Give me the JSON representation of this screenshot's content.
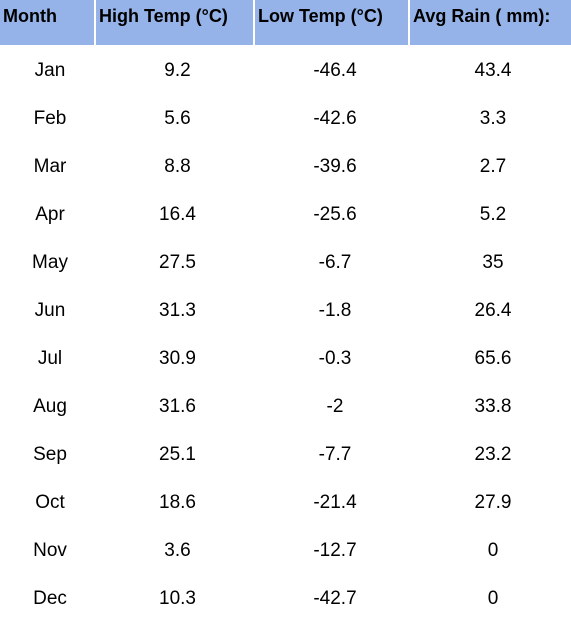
{
  "table": {
    "headers": [
      "Month",
      "High Temp (°C)",
      "Low Temp (°C)",
      "Avg Rain ( mm):"
    ],
    "rows": [
      [
        "Jan",
        "9.2",
        "-46.4",
        "43.4"
      ],
      [
        "Feb",
        "5.6",
        "-42.6",
        "3.3"
      ],
      [
        "Mar",
        "8.8",
        "-39.6",
        "2.7"
      ],
      [
        "Apr",
        "16.4",
        "-25.6",
        "5.2"
      ],
      [
        "May",
        "27.5",
        "-6.7",
        "35"
      ],
      [
        "Jun",
        "31.3",
        "-1.8",
        "26.4"
      ],
      [
        "Jul",
        "30.9",
        "-0.3",
        "65.6"
      ],
      [
        "Aug",
        "31.6",
        "-2",
        "33.8"
      ],
      [
        "Sep",
        "25.1",
        "-7.7",
        "23.2"
      ],
      [
        "Oct",
        "18.6",
        "-21.4",
        "27.9"
      ],
      [
        "Nov",
        "3.6",
        "-12.7",
        "0"
      ],
      [
        "Dec",
        "10.3",
        "-42.7",
        "0"
      ]
    ]
  },
  "colors": {
    "header_background": "#95b3e8",
    "body_background": "#ffffff",
    "text": "#000000"
  }
}
